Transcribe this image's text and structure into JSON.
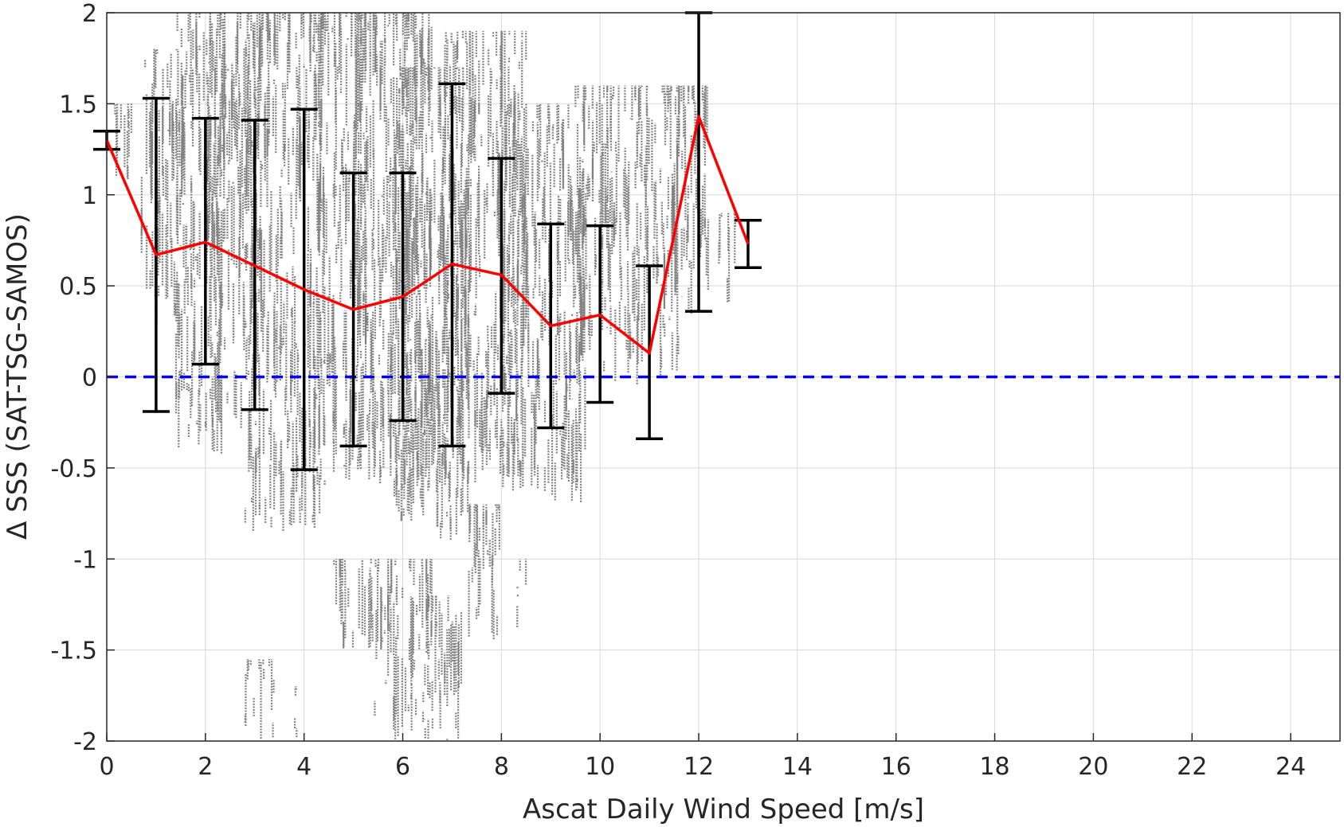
{
  "chart_data": {
    "type": "line",
    "title": "",
    "xlabel": "Ascat Daily Wind Speed [m/s]",
    "ylabel": "Δ SSS (SAT-TSG-SAMOS)",
    "xlim": [
      0,
      25
    ],
    "ylim": [
      -2,
      2
    ],
    "xticks": [
      0,
      2,
      4,
      6,
      8,
      10,
      12,
      14,
      16,
      18,
      20,
      22,
      24
    ],
    "xtick_labels": [
      "0",
      "2",
      "4",
      "6",
      "8",
      "10",
      "12",
      "14",
      "16",
      "18",
      "20",
      "22",
      "24"
    ],
    "yticks": [
      2,
      1.5,
      1,
      0.5,
      0,
      -0.5,
      -1,
      -1.5,
      -2
    ],
    "ytick_labels": [
      "2",
      "1.5",
      "1",
      "0.5",
      "0",
      "-0.5",
      "-1",
      "-1.5",
      "-2"
    ],
    "grid": true,
    "colors": {
      "mean_line": "#ff0000",
      "error_bars": "#000000",
      "zero_line": "#0000ff",
      "scatter": "#808080",
      "grid": "#d9d9d9",
      "axes": "#262626"
    },
    "mean_series": {
      "x": [
        0,
        1,
        2,
        3,
        4,
        5,
        6,
        7,
        8,
        9,
        10,
        11,
        12,
        13
      ],
      "y": [
        1.3,
        0.67,
        0.74,
        0.61,
        0.48,
        0.37,
        0.44,
        0.62,
        0.56,
        0.28,
        0.34,
        0.13,
        1.43,
        0.73
      ],
      "lower": [
        1.25,
        -0.19,
        0.07,
        -0.18,
        -0.51,
        -0.38,
        -0.24,
        -0.38,
        -0.09,
        -0.28,
        -0.14,
        -0.34,
        0.36,
        0.6
      ],
      "upper": [
        1.35,
        1.53,
        1.42,
        1.41,
        1.47,
        1.12,
        1.12,
        1.61,
        1.2,
        0.84,
        0.83,
        0.61,
        2.0,
        0.86
      ]
    },
    "zero_line": 0,
    "scatter_clusters": [
      {
        "x": [
          0.1,
          0.5
        ],
        "y": [
          1.0,
          1.5
        ]
      },
      {
        "x": [
          0.7,
          1.6
        ],
        "y": [
          0.3,
          1.8
        ]
      },
      {
        "x": [
          1.4,
          2.4
        ],
        "y": [
          -0.45,
          2.0
        ]
      },
      {
        "x": [
          2.0,
          3.2
        ],
        "y": [
          -0.3,
          2.0
        ]
      },
      {
        "x": [
          2.8,
          4.4
        ],
        "y": [
          -0.85,
          2.0
        ]
      },
      {
        "x": [
          4.2,
          5.4
        ],
        "y": [
          -0.6,
          2.0
        ]
      },
      {
        "x": [
          5.0,
          6.6
        ],
        "y": [
          -0.8,
          2.0
        ]
      },
      {
        "x": [
          5.8,
          7.4
        ],
        "y": [
          -0.9,
          1.7
        ]
      },
      {
        "x": [
          6.8,
          8.5
        ],
        "y": [
          -0.6,
          1.9
        ]
      },
      {
        "x": [
          8.0,
          9.7
        ],
        "y": [
          -0.7,
          1.5
        ]
      },
      {
        "x": [
          9.5,
          11.6
        ],
        "y": [
          -0.05,
          1.6
        ]
      },
      {
        "x": [
          11.3,
          12.2
        ],
        "y": [
          0.3,
          1.6
        ]
      },
      {
        "x": [
          12.4,
          12.8
        ],
        "y": [
          0.4,
          0.9
        ]
      },
      {
        "x": [
          2.8,
          3.4
        ],
        "y": [
          -2.0,
          -1.55
        ]
      },
      {
        "x": [
          3.8,
          4.0
        ],
        "y": [
          -2.0,
          -1.7
        ]
      },
      {
        "x": [
          4.6,
          5.4
        ],
        "y": [
          -1.5,
          -1.0
        ]
      },
      {
        "x": [
          5.3,
          6.6
        ],
        "y": [
          -2.0,
          -1.0
        ]
      },
      {
        "x": [
          6.5,
          7.2
        ],
        "y": [
          -2.0,
          -1.2
        ]
      },
      {
        "x": [
          7.3,
          8.0
        ],
        "y": [
          -1.5,
          -0.7
        ]
      },
      {
        "x": [
          8.3,
          8.5
        ],
        "y": [
          -1.5,
          -1.0
        ]
      }
    ]
  }
}
